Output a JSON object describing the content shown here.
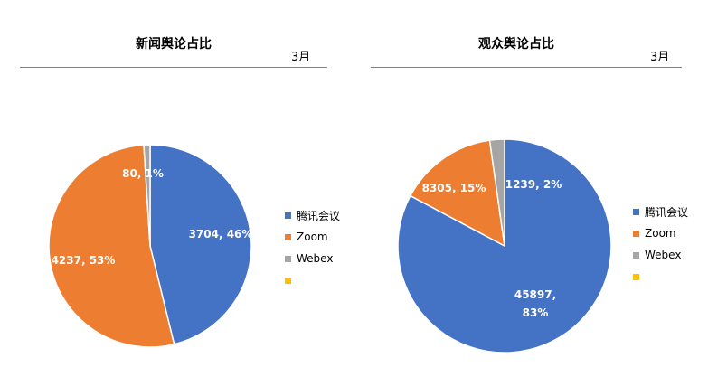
{
  "charts": [
    {
      "title": "新闻舆论占比",
      "period": "3月"
    },
    {
      "title": "观众舆论占比",
      "period": "3月"
    }
  ],
  "colors": [
    "#4472C4",
    "#ED7D31",
    "#A5A5A5",
    "#FFC000"
  ],
  "chart_data": [
    {
      "type": "pie",
      "title": "新闻舆论占比",
      "subtitle": "3月",
      "legend_position": "right",
      "categories": [
        "腾讯会议",
        "Zoom",
        "Webex",
        ""
      ],
      "values": [
        3704,
        4237,
        80,
        0
      ],
      "percents": [
        "46%",
        "53%",
        "1%",
        ""
      ],
      "data_labels": [
        "3704, 46%",
        "4237, 53%",
        "80, 1%",
        ""
      ]
    },
    {
      "type": "pie",
      "title": "观众舆论占比",
      "subtitle": "3月",
      "legend_position": "right",
      "categories": [
        "腾讯会议",
        "Zoom",
        "Webex",
        ""
      ],
      "values": [
        45897,
        8305,
        1239,
        0
      ],
      "percents": [
        "83%",
        "15%",
        "2%",
        ""
      ],
      "data_labels": [
        "45897, 83%",
        "8305, 15%",
        "1239, 2%",
        ""
      ]
    }
  ]
}
